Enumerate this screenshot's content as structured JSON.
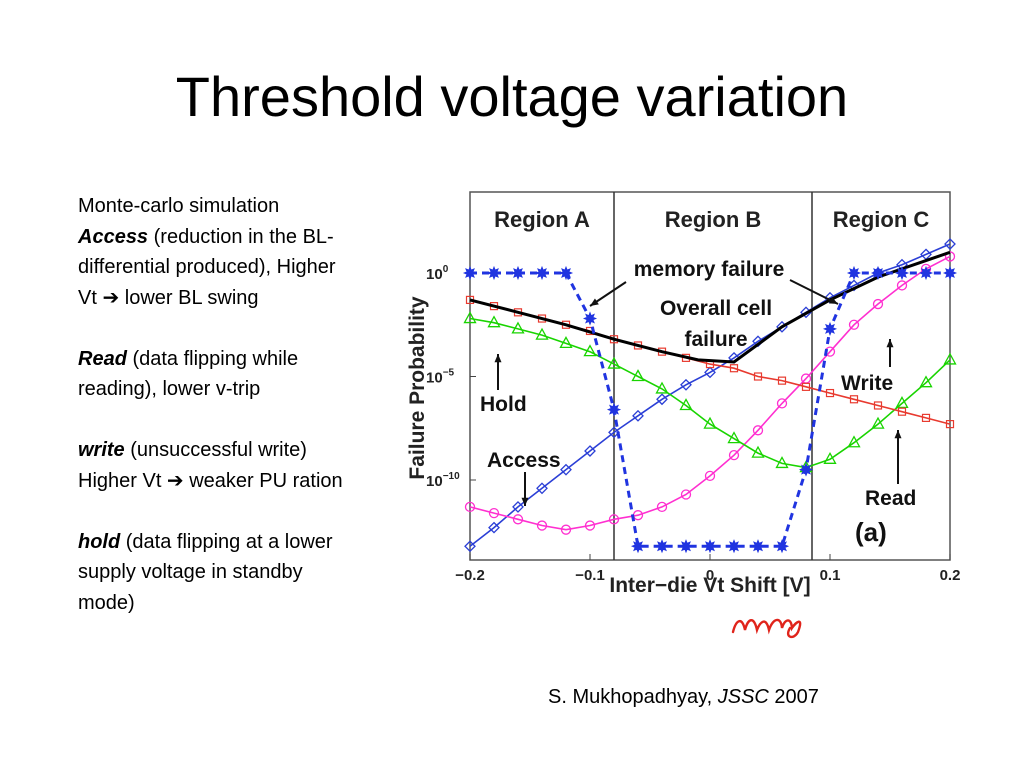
{
  "slide": {
    "title": "Threshold voltage variation",
    "notes": {
      "line1": "Monte-carlo simulation",
      "access_term": "Access",
      "access_text": " (reduction in the BL-differential produced), Higher Vt ➔ lower BL swing",
      "read_term": "Read",
      "read_text": " (data flipping while reading), lower v-trip",
      "write_term": "write",
      "write_text": " (unsuccessful write) Higher Vt ➔ weaker PU ration",
      "hold_term": "hold",
      "hold_text": " (data flipping at a lower supply voltage in standby mode)"
    },
    "citation": {
      "author": "S. Mukhopadhyay, ",
      "journal": "JSSC",
      "year": " 2007"
    },
    "signature": "AMoS"
  },
  "chart_data": {
    "type": "line",
    "xlabel": "Inter−die Vt Shift [V]",
    "ylabel": "Failure Probability",
    "panel_label": "(a)",
    "xlim": [
      -0.2,
      0.2
    ],
    "ylog": true,
    "ylim_exponent": [
      -13.2,
      1.0
    ],
    "x_ticks": [
      "−0.2",
      "−0.1",
      "0",
      "0.1",
      "0.2"
    ],
    "y_ticks": [
      {
        "base": "10",
        "exp": "0",
        "value_exp": 0
      },
      {
        "base": "10",
        "exp": "−5",
        "value_exp": -5
      },
      {
        "base": "10",
        "exp": "−10",
        "value_exp": -10
      }
    ],
    "region_boundaries": [
      -0.08,
      0.085
    ],
    "regions": [
      "Region A",
      "Region B",
      "Region C"
    ],
    "annotations": [
      "memory failure",
      "Overall cell failure",
      "Hold",
      "Access",
      "Write",
      "Read"
    ],
    "series": [
      {
        "name": "Access",
        "color": "#2b3fd6",
        "marker": "diamond",
        "dashed": false,
        "x": [
          -0.2,
          -0.18,
          -0.16,
          -0.14,
          -0.12,
          -0.1,
          -0.08,
          -0.06,
          -0.04,
          -0.02,
          0,
          0.02,
          0.04,
          0.06,
          0.08,
          0.1,
          0.12,
          0.14,
          0.16,
          0.18,
          0.2
        ],
        "log10": [
          -13.2,
          -12.3,
          -11.3,
          -10.4,
          -9.5,
          -8.6,
          -7.7,
          -6.9,
          -6.1,
          -5.4,
          -4.8,
          -4.1,
          -3.3,
          -2.6,
          -1.9,
          -1.2,
          -0.6,
          -0.0,
          0.4,
          0.9,
          1.4
        ]
      },
      {
        "name": "Write",
        "color": "#ff2fd0",
        "marker": "circle",
        "dashed": false,
        "x": [
          -0.2,
          -0.18,
          -0.16,
          -0.14,
          -0.12,
          -0.1,
          -0.08,
          -0.06,
          -0.04,
          -0.02,
          0,
          0.02,
          0.04,
          0.06,
          0.08,
          0.1,
          0.12,
          0.14,
          0.16,
          0.18,
          0.2
        ],
        "log10": [
          -11.3,
          -11.6,
          -11.9,
          -12.2,
          -12.4,
          -12.2,
          -11.9,
          -11.7,
          -11.3,
          -10.7,
          -9.8,
          -8.8,
          -7.6,
          -6.3,
          -5.1,
          -3.8,
          -2.5,
          -1.5,
          -0.6,
          0.2,
          0.8
        ]
      },
      {
        "name": "Hold",
        "color": "#19d400",
        "marker": "triangle",
        "dashed": false,
        "x": [
          -0.2,
          -0.18,
          -0.16,
          -0.14,
          -0.12,
          -0.1,
          -0.08,
          -0.06,
          -0.04,
          -0.02,
          0,
          0.02,
          0.04,
          0.06,
          0.08,
          0.1,
          0.12,
          0.14,
          0.16,
          0.18,
          0.2
        ],
        "log10": [
          -2.2,
          -2.4,
          -2.7,
          -3.0,
          -3.4,
          -3.8,
          -4.4,
          -5.0,
          -5.6,
          -6.4,
          -7.3,
          -8.0,
          -8.7,
          -9.2,
          -9.4,
          -9.0,
          -8.2,
          -7.3,
          -6.3,
          -5.3,
          -4.2
        ]
      },
      {
        "name": "Read",
        "color": "#e83a2f",
        "marker": "square",
        "dashed": false,
        "x": [
          -0.2,
          -0.18,
          -0.16,
          -0.14,
          -0.12,
          -0.1,
          -0.08,
          -0.06,
          -0.04,
          -0.02,
          0,
          0.02,
          0.04,
          0.06,
          0.08,
          0.1,
          0.12,
          0.14,
          0.16,
          0.18,
          0.2
        ],
        "log10": [
          -1.3,
          -1.6,
          -1.9,
          -2.2,
          -2.5,
          -2.8,
          -3.2,
          -3.5,
          -3.8,
          -4.1,
          -4.4,
          -4.6,
          -5.0,
          -5.2,
          -5.5,
          -5.8,
          -6.1,
          -6.4,
          -6.7,
          -7.0,
          -7.3
        ]
      },
      {
        "name": "Overall cell failure",
        "color": "#000000",
        "marker": "none",
        "dashed": false,
        "x": [
          -0.2,
          -0.16,
          -0.12,
          -0.08,
          -0.04,
          -0.01,
          0.02,
          0.06,
          0.1,
          0.14,
          0.18,
          0.2
        ],
        "log10": [
          -1.3,
          -1.9,
          -2.5,
          -3.2,
          -3.8,
          -4.2,
          -4.3,
          -2.6,
          -1.3,
          -0.2,
          0.6,
          1.0
        ]
      },
      {
        "name": "memory failure",
        "color": "#2034e0",
        "marker": "star",
        "dashed": true,
        "x": [
          -0.2,
          -0.18,
          -0.16,
          -0.14,
          -0.12,
          -0.1,
          -0.08,
          -0.06,
          -0.04,
          -0.02,
          0,
          0.02,
          0.04,
          0.06,
          0.08,
          0.1,
          0.12,
          0.14,
          0.16,
          0.18,
          0.2
        ],
        "log10": [
          0.0,
          0.0,
          0.0,
          0.0,
          0.0,
          -2.2,
          -6.6,
          -13.2,
          -13.2,
          -13.2,
          -13.2,
          -13.2,
          -13.2,
          -13.2,
          -9.5,
          -2.7,
          0.0,
          0.0,
          0.0,
          0.0,
          0.0
        ]
      }
    ]
  }
}
